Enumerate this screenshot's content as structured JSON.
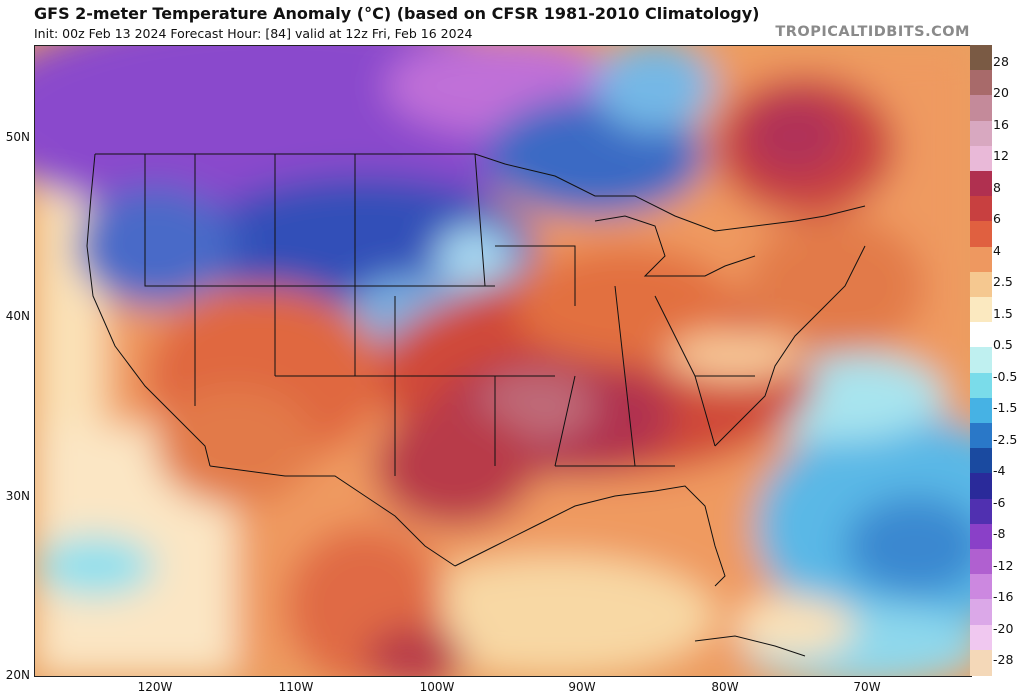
{
  "header": {
    "title": "GFS 2-meter Temperature Anomaly (°C) (based on CFSR 1981-2010 Climatology)",
    "subtitle": "Init: 00z Feb 13 2024   Forecast Hour: [84]   valid at 12z Fri, Feb 16 2024",
    "brand": "TROPICALTIDBITS.COM"
  },
  "axes": {
    "lat_labels": [
      "50N",
      "40N",
      "30N",
      "20N"
    ],
    "lon_labels": [
      "120W",
      "110W",
      "100W",
      "90W",
      "80W",
      "70W"
    ]
  },
  "colorbar": {
    "labels": [
      "28",
      "20",
      "16",
      "12",
      "8",
      "6",
      "4",
      "2.5",
      "1.5",
      "0.5",
      "-0.5",
      "-1.5",
      "-2.5",
      "-4",
      "-6",
      "-8",
      "-12",
      "-16",
      "-20",
      "-28"
    ],
    "colors": [
      "#7a5a44",
      "#a86a6a",
      "#c48a9a",
      "#d8a8c0",
      "#e9b9d8",
      "#b03050",
      "#c84040",
      "#e06040",
      "#ee9860",
      "#f5c890",
      "#fbe9c0",
      "#ffffff",
      "#bff0f0",
      "#7adcea",
      "#46b2e4",
      "#2a78c8",
      "#1a4aa0",
      "#2a2a9a",
      "#5030b0",
      "#8a40c8",
      "#b060d0",
      "#cc88e0",
      "#dba8e8",
      "#f0c8f0",
      "#f4d8b8"
    ]
  }
}
